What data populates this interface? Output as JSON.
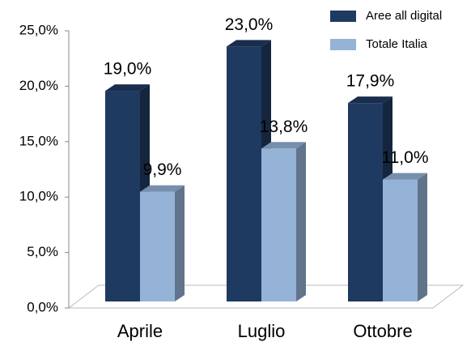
{
  "chart_data": {
    "type": "bar3d",
    "categories": [
      "Aprile",
      "Luglio",
      "Ottobre"
    ],
    "series": [
      {
        "name": "Aree all digital",
        "color": "#1f3a60",
        "values": [
          19.0,
          23.0,
          17.9
        ],
        "value_labels": [
          "19,0%",
          "23,0%",
          "17,9%"
        ]
      },
      {
        "name": "Totale Italia",
        "color": "#95b3d7",
        "values": [
          9.9,
          13.8,
          11.0
        ],
        "value_labels": [
          "9,9%",
          "13,8%",
          "11,0%"
        ]
      }
    ],
    "ylim": [
      0,
      25
    ],
    "yticks": [
      {
        "value": 0,
        "label": "0,0%"
      },
      {
        "value": 5,
        "label": "5,0%"
      },
      {
        "value": 10,
        "label": "10,0%"
      },
      {
        "value": 15,
        "label": "15,0%"
      },
      {
        "value": 20,
        "label": "20,0%"
      },
      {
        "value": 25,
        "label": "25,0%"
      }
    ],
    "legend": "top-right"
  }
}
